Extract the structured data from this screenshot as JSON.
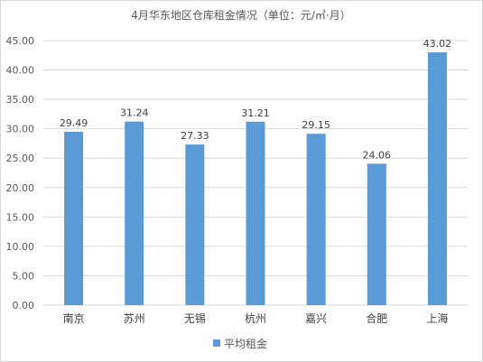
{
  "chart_data": {
    "type": "bar",
    "title": "4月华东地区仓库租金情况（单位：元/㎡·月）",
    "categories": [
      "南京",
      "苏州",
      "无锡",
      "杭州",
      "嘉兴",
      "合肥",
      "上海"
    ],
    "series": [
      {
        "name": "平均租金",
        "values": [
          29.49,
          31.24,
          27.33,
          31.21,
          29.15,
          24.06,
          43.02
        ]
      }
    ],
    "data_labels": [
      "29.49",
      "31.24",
      "27.33",
      "31.21",
      "29.15",
      "24.06",
      "43.02"
    ],
    "y_ticks": [
      "0.00",
      "5.00",
      "10.00",
      "15.00",
      "20.00",
      "25.00",
      "30.00",
      "35.00",
      "40.00",
      "45.00"
    ],
    "ylim": [
      0,
      45
    ],
    "grid": true,
    "legend_position": "bottom",
    "bar_color": "#5b9bd5",
    "gridline_color": "#d9d9d9"
  }
}
